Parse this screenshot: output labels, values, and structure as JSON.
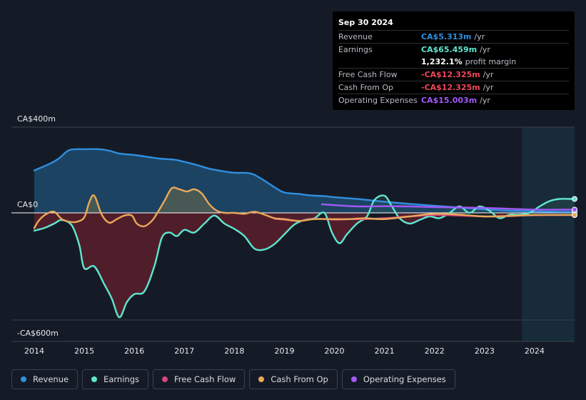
{
  "tooltip": {
    "date": "Sep 30 2024",
    "rows": [
      {
        "label": "Revenue",
        "value": "CA$5.313m",
        "unit": "/yr",
        "color": "#2f8fe0"
      },
      {
        "label": "Earnings",
        "value": "CA$65.459m",
        "unit": "/yr",
        "color": "#5fe6cf"
      },
      {
        "label": "",
        "value": "1,232.1%",
        "unit": "profit margin",
        "color": "#ffffff"
      },
      {
        "label": "Free Cash Flow",
        "value": "-CA$12.325m",
        "unit": "/yr",
        "color": "#f0475a"
      },
      {
        "label": "Cash From Op",
        "value": "-CA$12.325m",
        "unit": "/yr",
        "color": "#f0475a"
      },
      {
        "label": "Operating Expenses",
        "value": "CA$15.003m",
        "unit": "/yr",
        "color": "#a259f5"
      }
    ]
  },
  "legend": [
    {
      "label": "Revenue",
      "color": "#2f8fe0"
    },
    {
      "label": "Earnings",
      "color": "#5fe6cf"
    },
    {
      "label": "Free Cash Flow",
      "color": "#d9467e"
    },
    {
      "label": "Cash From Op",
      "color": "#e8a95a"
    },
    {
      "label": "Operating Expenses",
      "color": "#a259f5"
    }
  ],
  "chart_data": {
    "type": "line",
    "y_tick_labels": [
      "CA$400m",
      "CA$0",
      "-CA$600m"
    ],
    "ylim": [
      -600,
      400
    ],
    "xlim": [
      2014.0,
      2024.8
    ],
    "x_tick_labels": [
      "2014",
      "2015",
      "2016",
      "2017",
      "2018",
      "2019",
      "2020",
      "2021",
      "2022",
      "2023",
      "2024"
    ],
    "x_ticks": [
      2014,
      2015,
      2016,
      2017,
      2018,
      2019,
      2020,
      2021,
      2022,
      2023,
      2024
    ],
    "highlight_start": 2023.75,
    "series": [
      {
        "name": "Revenue",
        "color": "#2f8fe0",
        "fill": true,
        "x": [
          2014.0,
          2014.3,
          2014.5,
          2014.7,
          2015.0,
          2015.3,
          2015.5,
          2015.7,
          2016.0,
          2016.3,
          2016.5,
          2016.8,
          2017.0,
          2017.3,
          2017.5,
          2017.8,
          2018.0,
          2018.3,
          2018.5,
          2018.8,
          2019.0,
          2019.3,
          2019.5,
          2019.8,
          2020.0,
          2020.5,
          2021.0,
          2021.5,
          2022.0,
          2022.5,
          2023.0,
          2023.5,
          2024.0,
          2024.5,
          2024.8
        ],
        "y": [
          198,
          228,
          255,
          293,
          297,
          297,
          290,
          277,
          270,
          260,
          253,
          248,
          238,
          220,
          206,
          193,
          187,
          185,
          165,
          120,
          95,
          88,
          82,
          78,
          73,
          64,
          52,
          42,
          33,
          25,
          16,
          10,
          7,
          5,
          5
        ]
      },
      {
        "name": "Earnings",
        "color": "#5fe6cf",
        "fill": true,
        "x": [
          2014.0,
          2014.2,
          2014.4,
          2014.55,
          2014.75,
          2014.9,
          2015.0,
          2015.2,
          2015.4,
          2015.55,
          2015.7,
          2015.85,
          2016.0,
          2016.2,
          2016.4,
          2016.55,
          2016.7,
          2016.85,
          2017.0,
          2017.2,
          2017.4,
          2017.6,
          2017.8,
          2018.0,
          2018.2,
          2018.4,
          2018.6,
          2018.8,
          2019.0,
          2019.2,
          2019.4,
          2019.6,
          2019.8,
          2019.95,
          2020.1,
          2020.25,
          2020.45,
          2020.65,
          2020.8,
          2021.0,
          2021.15,
          2021.3,
          2021.5,
          2021.7,
          2021.9,
          2022.1,
          2022.3,
          2022.5,
          2022.7,
          2022.9,
          2023.1,
          2023.3,
          2023.5,
          2023.7,
          2023.9,
          2024.1,
          2024.3,
          2024.5,
          2024.7,
          2024.8
        ],
        "y": [
          -100,
          -85,
          -60,
          -40,
          -70,
          -180,
          -310,
          -300,
          -400,
          -480,
          -585,
          -500,
          -455,
          -440,
          -300,
          -140,
          -110,
          -130,
          -95,
          -110,
          -60,
          -15,
          -60,
          -90,
          -130,
          -200,
          -205,
          -175,
          -120,
          -65,
          -40,
          -30,
          0,
          -110,
          -170,
          -120,
          -60,
          -20,
          60,
          80,
          30,
          -30,
          -60,
          -40,
          -20,
          -30,
          0,
          30,
          0,
          30,
          10,
          -30,
          -10,
          -10,
          0,
          30,
          55,
          65,
          65,
          65
        ]
      },
      {
        "name": "Free Cash Flow",
        "color": "#d9467e",
        "fill": false,
        "x": [
          2018.8,
          2019.0,
          2019.3,
          2019.6,
          2020.0,
          2020.3,
          2020.6,
          2021.0,
          2021.5,
          2022.0,
          2022.5,
          2023.0,
          2023.5,
          2024.0,
          2024.8
        ],
        "y": [
          -33,
          -38,
          -45,
          -33,
          -38,
          -35,
          -35,
          -30,
          -20,
          -12,
          -15,
          -20,
          -18,
          -13,
          -12
        ]
      },
      {
        "name": "Cash From Op",
        "color": "#e8a95a",
        "fill": true,
        "x": [
          2014.0,
          2014.1,
          2014.25,
          2014.4,
          2014.55,
          2014.7,
          2014.85,
          2015.0,
          2015.1,
          2015.2,
          2015.35,
          2015.5,
          2015.65,
          2015.8,
          2015.95,
          2016.05,
          2016.2,
          2016.35,
          2016.45,
          2016.6,
          2016.75,
          2016.9,
          2017.05,
          2017.2,
          2017.35,
          2017.5,
          2017.65,
          2017.8,
          2018.0,
          2018.2,
          2018.4,
          2018.6,
          2018.8,
          2019.0,
          2019.3,
          2019.6,
          2020.0,
          2020.3,
          2020.6,
          2021.0,
          2021.5,
          2022.0,
          2022.5,
          2023.0,
          2023.5,
          2024.0,
          2024.8
        ],
        "y": [
          -85,
          -40,
          -5,
          5,
          -35,
          -50,
          -50,
          -25,
          50,
          80,
          -10,
          -55,
          -35,
          -15,
          -15,
          -60,
          -75,
          -45,
          -5,
          55,
          115,
          110,
          100,
          110,
          90,
          40,
          10,
          0,
          0,
          -5,
          5,
          -10,
          -30,
          -35,
          -45,
          -35,
          -35,
          -35,
          -30,
          -35,
          -20,
          -5,
          -10,
          -20,
          -17,
          -12,
          -12
        ]
      },
      {
        "name": "Operating Expenses",
        "color": "#a259f5",
        "fill": false,
        "x": [
          2019.75,
          2020.0,
          2020.5,
          2021.0,
          2021.5,
          2022.0,
          2022.5,
          2023.0,
          2023.5,
          2024.0,
          2024.5,
          2024.8
        ],
        "y": [
          40,
          36,
          30,
          31,
          30,
          27,
          25,
          23,
          19,
          15,
          15,
          15
        ]
      }
    ]
  }
}
